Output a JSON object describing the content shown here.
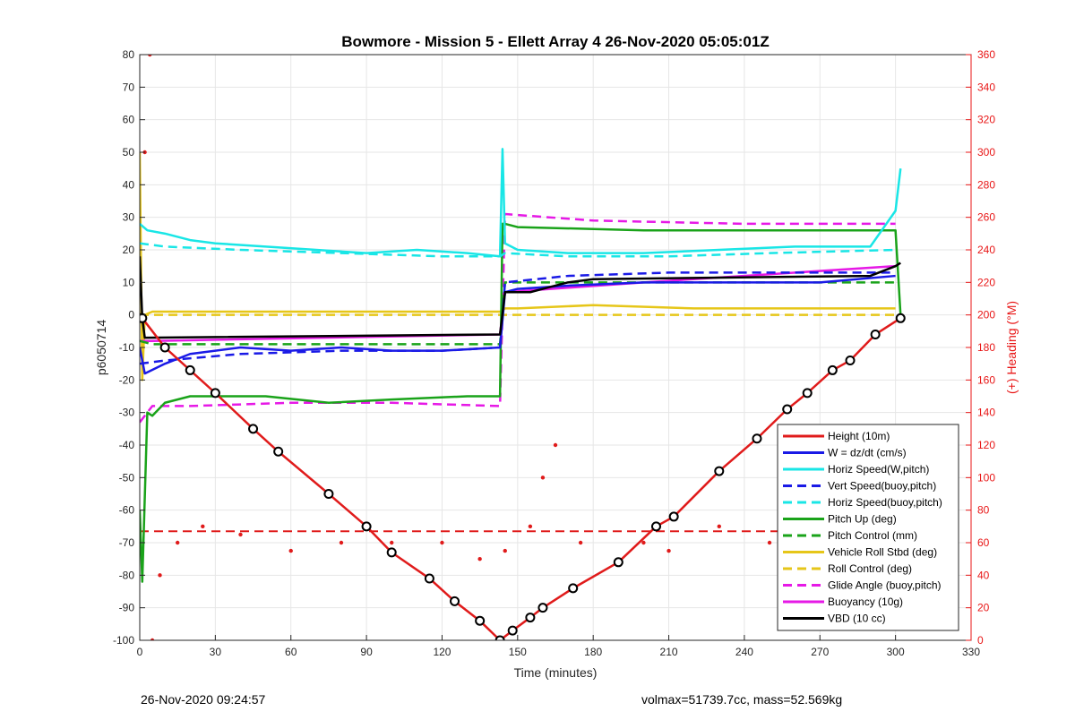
{
  "chart_data": {
    "type": "line",
    "title": "Bowmore - Mission 5 - Ellett Array 4 26-Nov-2020 05:05:01Z",
    "xlabel": "Time (minutes)",
    "ylabel": "p6050714",
    "y2label": "(+) Heading (°M)",
    "xlim": [
      0,
      330
    ],
    "ylim": [
      -100,
      80
    ],
    "y2lim": [
      0,
      360
    ],
    "xticks": [
      0,
      30,
      60,
      90,
      120,
      150,
      180,
      210,
      240,
      270,
      300,
      330
    ],
    "yticks": [
      -100,
      -90,
      -80,
      -70,
      -60,
      -50,
      -40,
      -30,
      -20,
      -10,
      0,
      10,
      20,
      30,
      40,
      50,
      60,
      70,
      80
    ],
    "y2ticks": [
      0,
      20,
      40,
      60,
      80,
      100,
      120,
      140,
      160,
      180,
      200,
      220,
      240,
      260,
      280,
      300,
      320,
      340,
      360
    ],
    "grid": true,
    "legend_position": "bottom-right",
    "series": [
      {
        "name": "Height (10m)",
        "color": "#e01b1b",
        "style": "solid",
        "x": [
          0,
          1,
          10,
          20,
          30,
          45,
          55,
          75,
          90,
          100,
          115,
          125,
          135,
          143,
          148,
          155,
          160,
          172,
          190,
          205,
          212,
          230,
          245,
          257,
          265,
          275,
          282,
          292,
          302
        ],
        "y": [
          -1,
          -1,
          -10,
          -17,
          -24,
          -35,
          -42,
          -55,
          -65,
          -73,
          -81,
          -88,
          -94,
          -100,
          -97,
          -93,
          -90,
          -84,
          -76,
          -65,
          -62,
          -48,
          -38,
          -29,
          -24,
          -17,
          -14,
          -6,
          -1
        ]
      },
      {
        "name": "W = dz/dt (cm/s)",
        "color": "#1a1ae6",
        "style": "solid",
        "x": [
          0,
          2,
          10,
          20,
          40,
          60,
          80,
          100,
          120,
          143,
          145,
          150,
          170,
          200,
          240,
          270,
          300
        ],
        "y": [
          -10,
          -18,
          -15,
          -12,
          -10,
          -11,
          -10,
          -11,
          -11,
          -10,
          7,
          8,
          9,
          10,
          10,
          10,
          12
        ]
      },
      {
        "name": "Horiz Speed(W,pitch)",
        "color": "#19e6e6",
        "style": "solid",
        "x": [
          0,
          3,
          10,
          20,
          30,
          50,
          70,
          90,
          110,
          130,
          143,
          144,
          145,
          150,
          170,
          200,
          230,
          260,
          290,
          300,
          302
        ],
        "y": [
          28,
          26,
          25,
          23,
          22,
          21,
          20,
          19,
          20,
          19,
          18,
          51,
          22,
          20,
          19,
          19,
          20,
          21,
          21,
          32,
          45
        ]
      },
      {
        "name": "Vert Speed(buoy,pitch)",
        "color": "#1a1ae6",
        "style": "dashed",
        "x": [
          0,
          10,
          40,
          80,
          120,
          143,
          145,
          170,
          210,
          250,
          300
        ],
        "y": [
          -15,
          -14,
          -12,
          -11,
          -11,
          -10,
          10,
          12,
          13,
          13,
          13
        ]
      },
      {
        "name": "Horiz Speed(buoy,pitch)",
        "color": "#19e6e6",
        "style": "dashed",
        "x": [
          0,
          10,
          40,
          80,
          120,
          143,
          145,
          170,
          210,
          250,
          300
        ],
        "y": [
          22,
          21,
          20,
          19,
          18,
          18,
          19,
          18,
          18,
          19,
          20
        ]
      },
      {
        "name": "Pitch Up (deg)",
        "color": "#1aa31a",
        "style": "solid",
        "x": [
          0,
          1,
          3,
          5,
          10,
          20,
          50,
          75,
          100,
          130,
          143,
          144,
          145,
          150,
          200,
          250,
          300,
          302
        ],
        "y": [
          -60,
          -82,
          -30,
          -31,
          -27,
          -25,
          -25,
          -27,
          -26,
          -25,
          -25,
          28,
          28,
          27,
          26,
          26,
          26,
          0
        ]
      },
      {
        "name": "Pitch Control (mm)",
        "color": "#1aa31a",
        "style": "dashed",
        "x": [
          0,
          5,
          50,
          100,
          143,
          145,
          200,
          250,
          300
        ],
        "y": [
          -8,
          -9,
          -9,
          -9,
          -9,
          10,
          10,
          10,
          10
        ]
      },
      {
        "name": "Vehicle Roll Stbd (deg)",
        "color": "#e6c619",
        "style": "solid",
        "x": [
          0,
          1,
          2,
          5,
          10,
          40,
          80,
          120,
          143,
          145,
          150,
          180,
          220,
          260,
          300
        ],
        "y": [
          50,
          -20,
          0,
          1,
          1,
          1,
          1,
          1,
          1,
          2,
          2,
          3,
          2,
          2,
          2
        ]
      },
      {
        "name": "Roll Control (deg)",
        "color": "#e6c619",
        "style": "dashed",
        "x": [
          0,
          10,
          50,
          100,
          143,
          145,
          200,
          250,
          300
        ],
        "y": [
          0,
          0,
          0,
          0,
          0,
          0,
          0,
          0,
          0
        ]
      },
      {
        "name": "Glide Angle (buoy,pitch)",
        "color": "#e619e6",
        "style": "dashed",
        "x": [
          0,
          5,
          20,
          60,
          100,
          143,
          145,
          180,
          240,
          300
        ],
        "y": [
          -33,
          -28,
          -28,
          -27,
          -27,
          -28,
          31,
          29,
          28,
          28
        ]
      },
      {
        "name": "Buoyancy (10g)",
        "color": "#e619e6",
        "style": "solid",
        "x": [
          0,
          5,
          143,
          145,
          200,
          300
        ],
        "y": [
          -8,
          -8,
          -6,
          7,
          10,
          15
        ]
      },
      {
        "name": "VBD (10 cc)",
        "color": "#000000",
        "style": "solid",
        "x": [
          0,
          1,
          2,
          143,
          145,
          155,
          160,
          170,
          180,
          290,
          300,
          302
        ],
        "y": [
          18,
          -1,
          -7,
          -6,
          7,
          7,
          8,
          10,
          11,
          12,
          15,
          16
        ]
      }
    ],
    "heading": {
      "name": "Heading",
      "color": "#e01b1b",
      "x": [
        0,
        2,
        4,
        5,
        8,
        15,
        25,
        40,
        60,
        80,
        100,
        120,
        135,
        145,
        155,
        160,
        165,
        175,
        200,
        210,
        230,
        250,
        270,
        290,
        300,
        302
      ],
      "y": [
        200,
        300,
        360,
        0,
        40,
        60,
        70,
        65,
        55,
        60,
        60,
        60,
        50,
        55,
        70,
        100,
        120,
        60,
        60,
        55,
        70,
        60,
        60,
        65,
        60,
        20
      ]
    },
    "heading_target": {
      "name": "Heading target",
      "color": "#e01b1b",
      "value": 67,
      "style": "dashed"
    }
  },
  "footer": {
    "left": "26-Nov-2020 09:24:57",
    "right": "volmax=51739.7cc, mass=52.569kg"
  }
}
